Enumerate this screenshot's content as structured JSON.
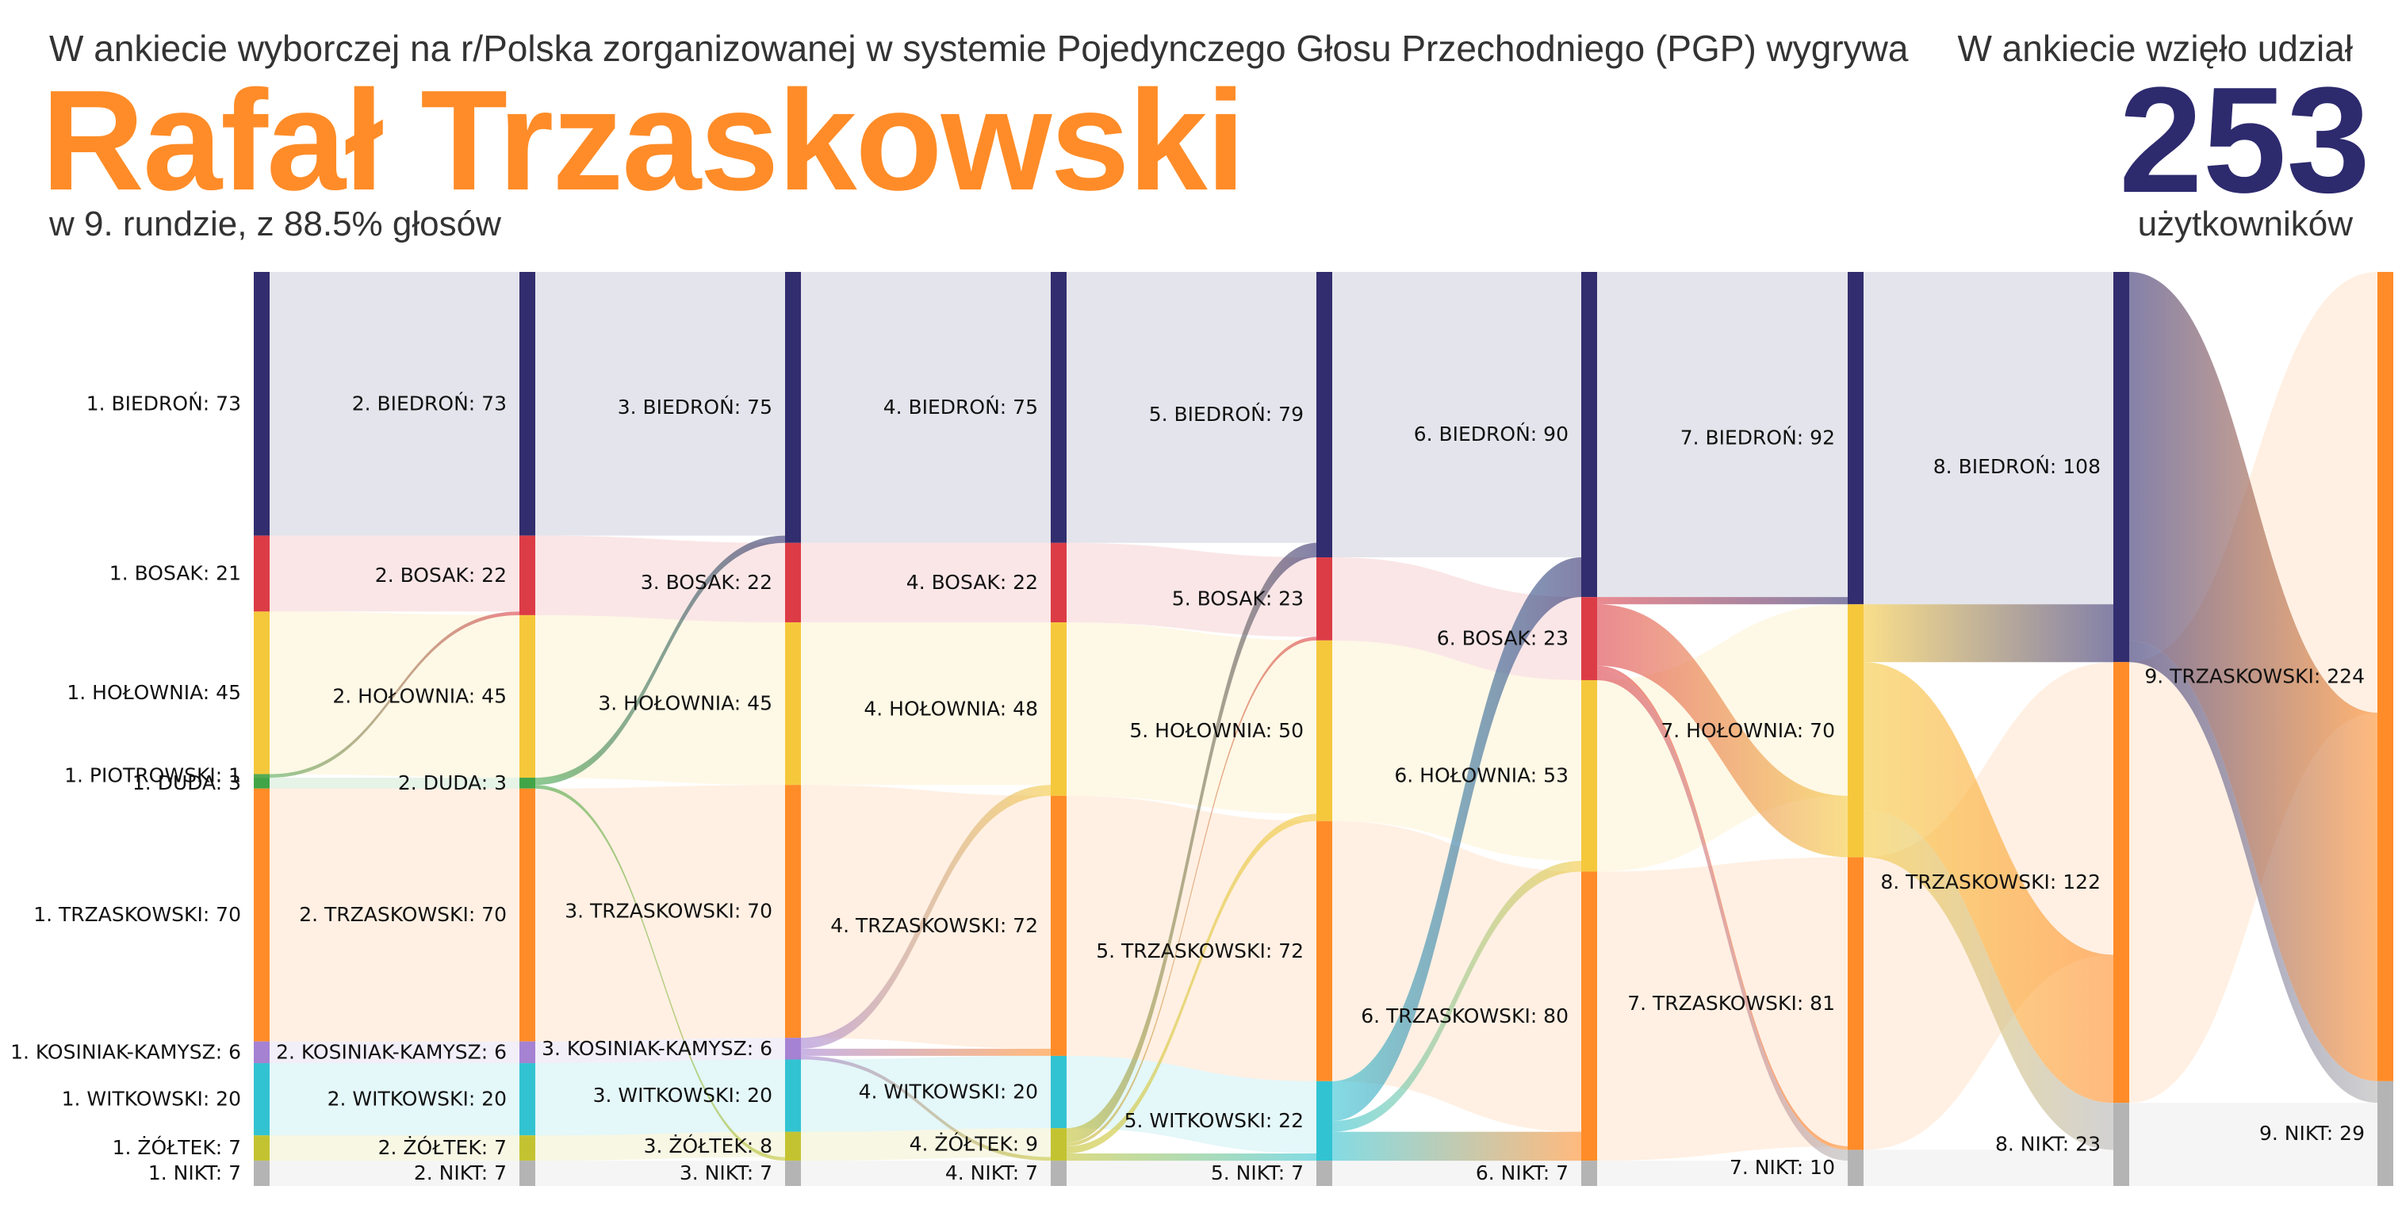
{
  "header": {
    "intro": "W ankiecie wyborczej na r/Polska zorganizowanej w systemie Pojedynczego Głosu Przechodniego (PGP) wygrywa",
    "winner": "Rafał Trzaskowski",
    "round_summary": "w 9. rundzie, z 88.5% głosów",
    "participants_label": "W ankiecie wzięło udział",
    "participants_count": "253",
    "participants_unit": "użytkowników"
  },
  "colors": {
    "BIEDROŃ": "#322d6e",
    "BOSAK": "#dc3c46",
    "HOŁOWNIA": "#f5c83c",
    "PIOTROWSKI": "#55aa55",
    "DUDA": "#41a547",
    "TRZASKOWSKI": "#ff8c28",
    "KOSINIAK-KAMYSZ": "#a582d2",
    "WITKOWSKI": "#32c3d2",
    "ŻÓŁTEK": "#c3c332",
    "NIKT": "#b4b4b4"
  },
  "chart_data": {
    "type": "sankey",
    "title": "",
    "total": 253,
    "rounds": [
      [
        [
          "BIEDROŃ",
          73
        ],
        [
          "BOSAK",
          21
        ],
        [
          "HOŁOWNIA",
          45
        ],
        [
          "PIOTROWSKI",
          1
        ],
        [
          "DUDA",
          3
        ],
        [
          "TRZASKOWSKI",
          70
        ],
        [
          "KOSINIAK-KAMYSZ",
          6
        ],
        [
          "WITKOWSKI",
          20
        ],
        [
          "ŻÓŁTEK",
          7
        ],
        [
          "NIKT",
          7
        ]
      ],
      [
        [
          "BIEDROŃ",
          73
        ],
        [
          "BOSAK",
          22
        ],
        [
          "HOŁOWNIA",
          45
        ],
        [
          "DUDA",
          3
        ],
        [
          "TRZASKOWSKI",
          70
        ],
        [
          "KOSINIAK-KAMYSZ",
          6
        ],
        [
          "WITKOWSKI",
          20
        ],
        [
          "ŻÓŁTEK",
          7
        ],
        [
          "NIKT",
          7
        ]
      ],
      [
        [
          "BIEDROŃ",
          75
        ],
        [
          "BOSAK",
          22
        ],
        [
          "HOŁOWNIA",
          45
        ],
        [
          "TRZASKOWSKI",
          70
        ],
        [
          "KOSINIAK-KAMYSZ",
          6
        ],
        [
          "WITKOWSKI",
          20
        ],
        [
          "ŻÓŁTEK",
          8
        ],
        [
          "NIKT",
          7
        ]
      ],
      [
        [
          "BIEDROŃ",
          75
        ],
        [
          "BOSAK",
          22
        ],
        [
          "HOŁOWNIA",
          48
        ],
        [
          "TRZASKOWSKI",
          72
        ],
        [
          "WITKOWSKI",
          20
        ],
        [
          "ŻÓŁTEK",
          9
        ],
        [
          "NIKT",
          7
        ]
      ],
      [
        [
          "BIEDROŃ",
          79
        ],
        [
          "BOSAK",
          23
        ],
        [
          "HOŁOWNIA",
          50
        ],
        [
          "TRZASKOWSKI",
          72
        ],
        [
          "WITKOWSKI",
          22
        ],
        [
          "NIKT",
          7
        ]
      ],
      [
        [
          "BIEDROŃ",
          90
        ],
        [
          "BOSAK",
          23
        ],
        [
          "HOŁOWNIA",
          53
        ],
        [
          "TRZASKOWSKI",
          80
        ],
        [
          "NIKT",
          7
        ]
      ],
      [
        [
          "BIEDROŃ",
          92
        ],
        [
          "HOŁOWNIA",
          70
        ],
        [
          "TRZASKOWSKI",
          81
        ],
        [
          "NIKT",
          10
        ]
      ],
      [
        [
          "BIEDROŃ",
          108
        ],
        [
          "TRZASKOWSKI",
          122
        ],
        [
          "NIKT",
          23
        ]
      ],
      [
        [
          "TRZASKOWSKI",
          224
        ],
        [
          "NIKT",
          29
        ]
      ]
    ],
    "transfers": [
      [
        [
          "PIOTROWSKI",
          "BOSAK",
          1
        ]
      ],
      [
        [
          "DUDA",
          "BIEDROŃ",
          2
        ],
        [
          "DUDA",
          "ŻÓŁTEK",
          1
        ]
      ],
      [
        [
          "KOSINIAK-KAMYSZ",
          "HOŁOWNIA",
          3
        ],
        [
          "KOSINIAK-KAMYSZ",
          "TRZASKOWSKI",
          2
        ],
        [
          "KOSINIAK-KAMYSZ",
          "ŻÓŁTEK",
          1
        ]
      ],
      [
        [
          "ŻÓŁTEK",
          "BIEDROŃ",
          4
        ],
        [
          "ŻÓŁTEK",
          "BOSAK",
          1
        ],
        [
          "ŻÓŁTEK",
          "HOŁOWNIA",
          2
        ],
        [
          "ŻÓŁTEK",
          "WITKOWSKI",
          2
        ]
      ],
      [
        [
          "WITKOWSKI",
          "BIEDROŃ",
          11
        ],
        [
          "WITKOWSKI",
          "HOŁOWNIA",
          3
        ],
        [
          "WITKOWSKI",
          "TRZASKOWSKI",
          8
        ]
      ],
      [
        [
          "BOSAK",
          "BIEDROŃ",
          2
        ],
        [
          "BOSAK",
          "HOŁOWNIA",
          17
        ],
        [
          "BOSAK",
          "TRZASKOWSKI",
          1
        ],
        [
          "BOSAK",
          "NIKT",
          3
        ]
      ],
      [
        [
          "HOŁOWNIA",
          "BIEDROŃ",
          16
        ],
        [
          "HOŁOWNIA",
          "TRZASKOWSKI",
          41
        ],
        [
          "HOŁOWNIA",
          "NIKT",
          13
        ]
      ],
      [
        [
          "BIEDROŃ",
          "TRZASKOWSKI",
          102
        ],
        [
          "BIEDROŃ",
          "NIKT",
          6
        ]
      ]
    ]
  }
}
